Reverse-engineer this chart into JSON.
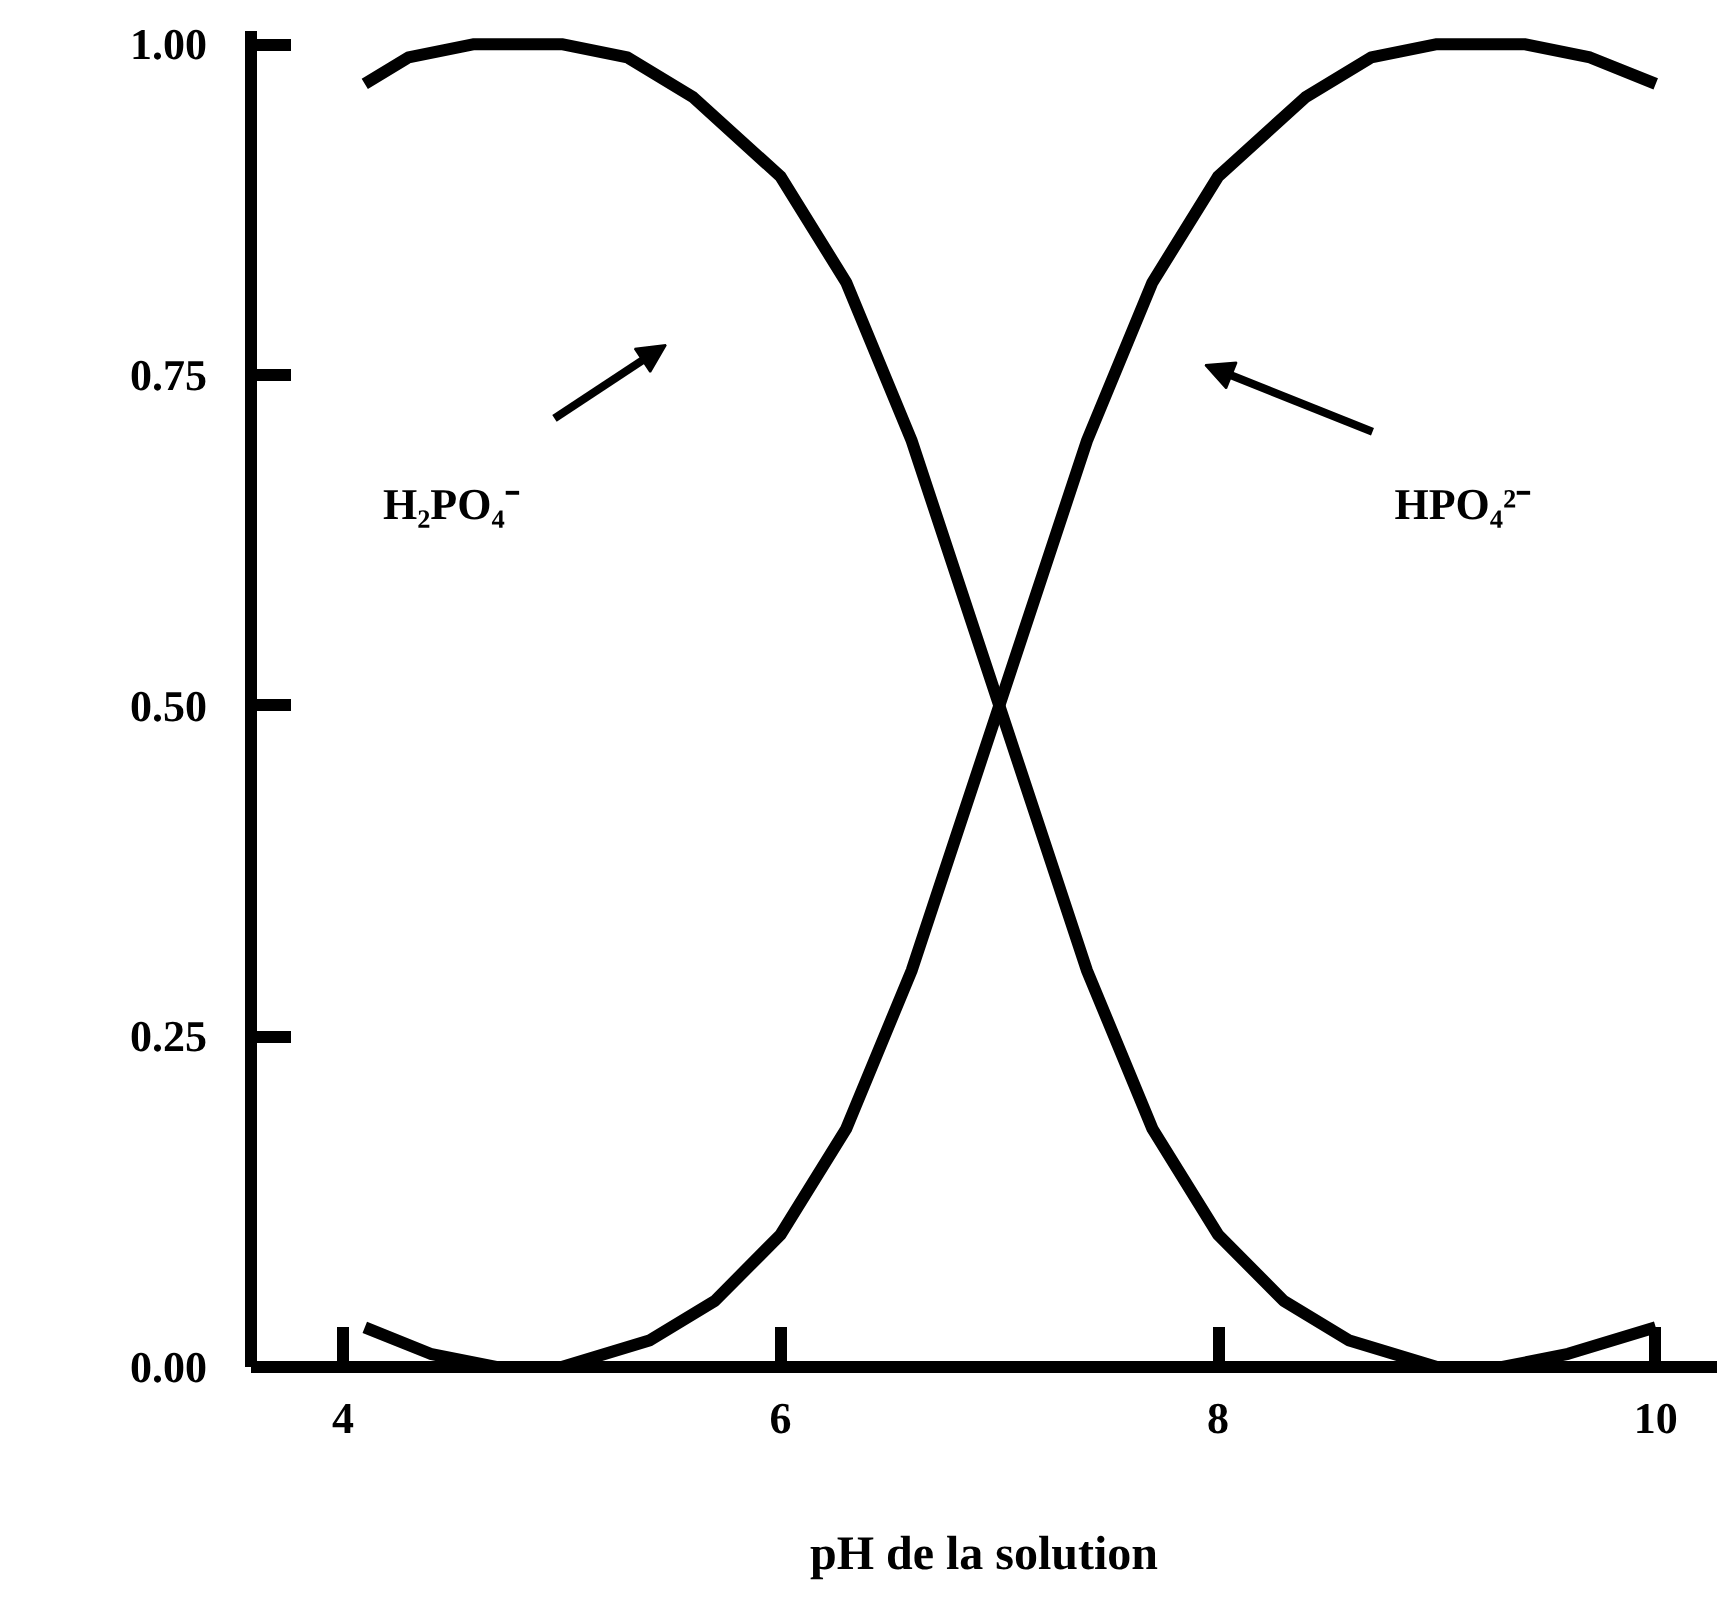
{
  "chart_data": {
    "type": "line",
    "xlabel": "pH de la solution",
    "xlim": [
      3.58,
      10.28
    ],
    "ylim": [
      0,
      1.01
    ],
    "xticks": [
      4,
      6,
      8,
      10
    ],
    "yticks": [
      {
        "value": 0,
        "label": "0.00"
      },
      {
        "value": 0.25,
        "label": "0.25"
      },
      {
        "value": 0.5,
        "label": "0.50"
      },
      {
        "value": 0.75,
        "label": "0.75"
      },
      {
        "value": 1,
        "label": "1.00"
      }
    ],
    "grid": false,
    "marker": "none",
    "line_style": "solid",
    "series": [
      {
        "color": "#000000",
        "x": [
          4.1,
          4.3,
          4.6,
          5.0,
          5.3,
          5.6,
          6.0,
          6.3,
          6.6,
          6.8,
          7.0,
          7.2,
          7.4,
          7.7,
          8.0,
          8.3,
          8.6,
          9.0,
          9.3,
          9.6,
          10.0
        ],
        "values": [
          0.97,
          0.99,
          1.0,
          1.0,
          0.99,
          0.96,
          0.9,
          0.82,
          0.7,
          0.6,
          0.5,
          0.4,
          0.3,
          0.18,
          0.1,
          0.05,
          0.02,
          0.0,
          0.0,
          0.01,
          0.03
        ]
      },
      {
        "color": "#000000",
        "x": [
          4.1,
          4.4,
          4.7,
          5.0,
          5.4,
          5.7,
          6.0,
          6.3,
          6.6,
          6.8,
          7.0,
          7.2,
          7.4,
          7.7,
          8.0,
          8.4,
          8.7,
          9.0,
          9.4,
          9.7,
          10.0
        ],
        "values": [
          0.03,
          0.01,
          0.0,
          0.0,
          0.02,
          0.05,
          0.1,
          0.18,
          0.3,
          0.4,
          0.5,
          0.6,
          0.7,
          0.82,
          0.9,
          0.96,
          0.99,
          1.0,
          1.0,
          0.99,
          0.97
        ]
      }
    ],
    "annotations": [
      "H₂PO₄⁻",
      "HPO₄²⁻"
    ]
  }
}
